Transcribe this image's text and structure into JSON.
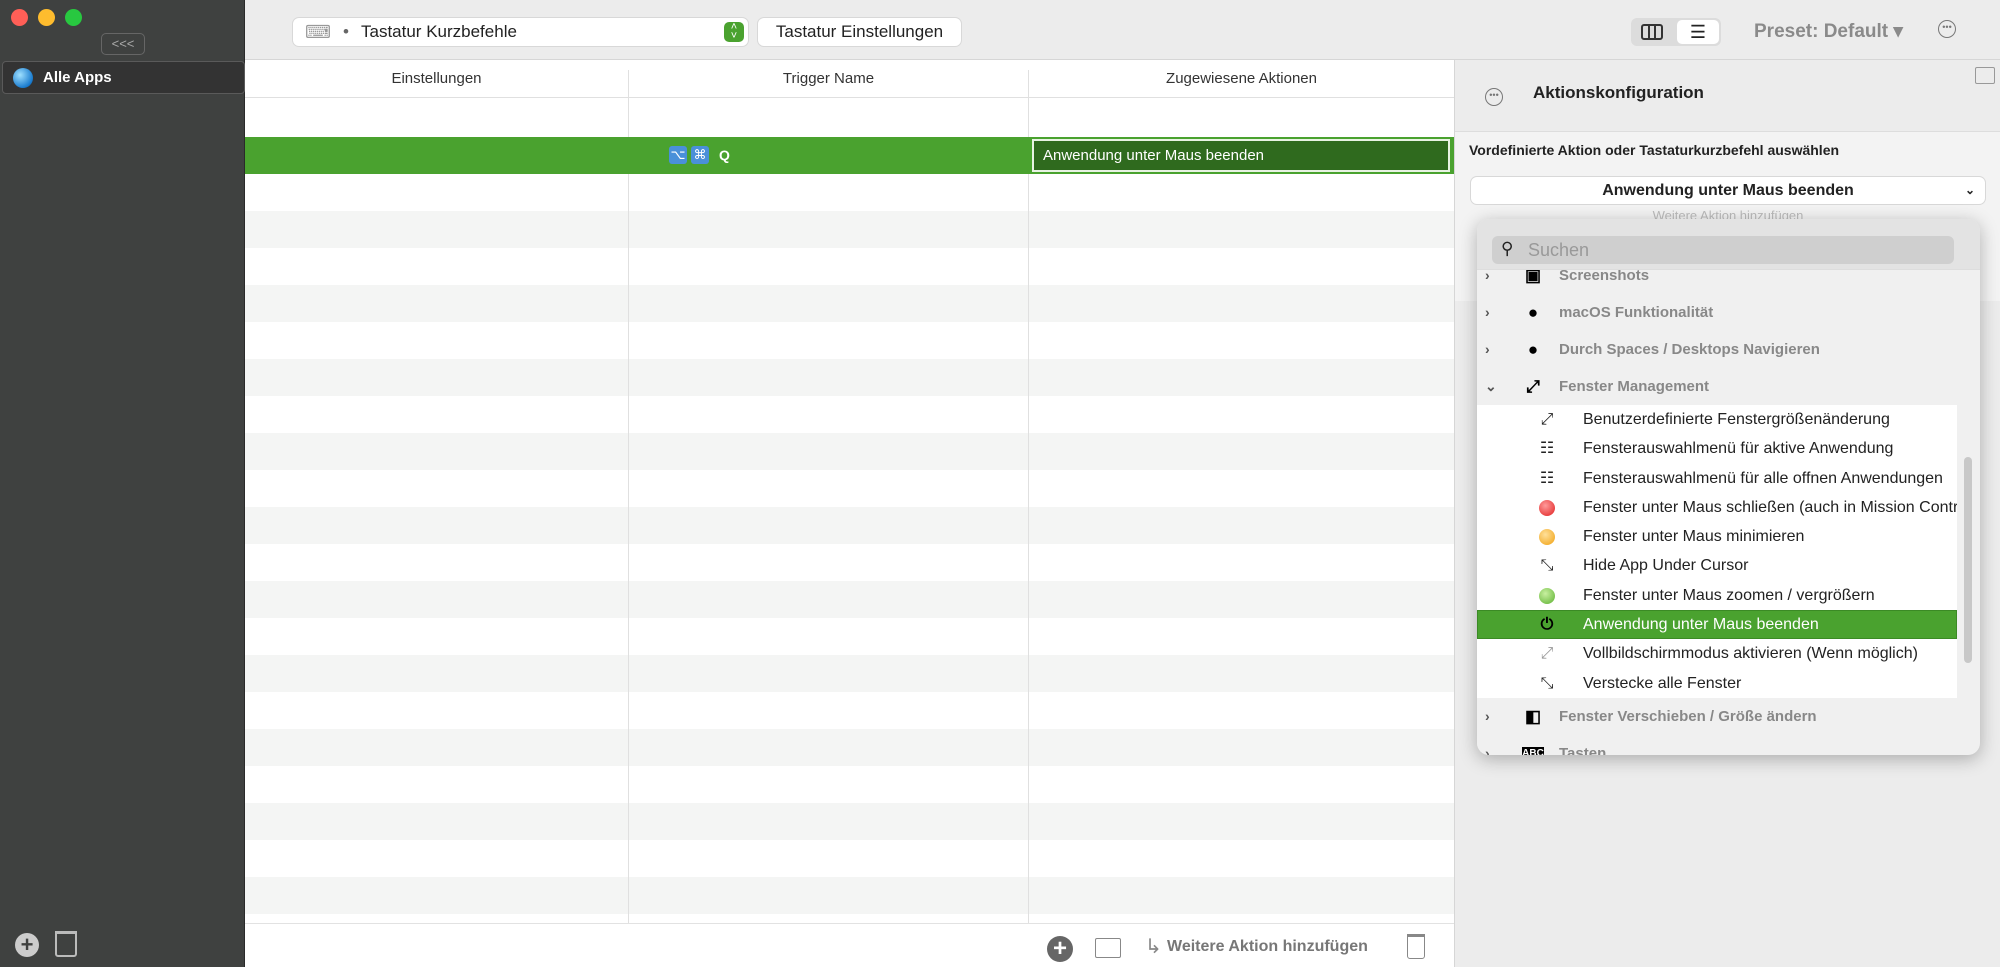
{
  "window": {
    "traffic_lights": [
      "#ff5f57",
      "#febc2e",
      "#28c840"
    ]
  },
  "sidebar": {
    "collapse_label": "<<<",
    "items": [
      {
        "label": "Alle Apps",
        "icon": "globe-icon"
      }
    ]
  },
  "toolbar": {
    "trigger_type": "Tastatur Kurzbefehle",
    "settings_button": "Tastatur Einstellungen",
    "preset": "Preset: Default ▾"
  },
  "table": {
    "columns": [
      "Einstellungen",
      "Trigger Name",
      "Zugewiesene Aktionen"
    ],
    "rows": [
      {
        "trigger_keys": [
          "⌥",
          "⌘"
        ],
        "trigger_key": "Q",
        "action": "Anwendung unter Maus beenden",
        "selected": true
      }
    ]
  },
  "bottom_bar": {
    "add_action_label": "Weitere Aktion hinzufügen"
  },
  "config": {
    "title": "Aktionskonfiguration",
    "select_label": "Vordefinierte Aktion oder Tastaturkurzbefehl auswählen",
    "selected_action": "Anwendung unter Maus beenden",
    "add_more_hint": "Weitere Aktion hinzufügen"
  },
  "popup": {
    "search_placeholder": "Suchen",
    "groups": {
      "screenshots": "Screenshots",
      "macos": "macOS Funktionalität",
      "spaces": "Durch Spaces / Desktops Navigieren",
      "window_mgmt": "Fenster Management",
      "move_resize": "Fenster Verschieben / Größe ändern",
      "keys": "Tasten"
    },
    "items": [
      "Benutzerdefinierte Fenstergrößenänderung",
      "Fensterauswahlmenü für aktive Anwendung",
      "Fensterauswahlmenü für alle offnen Anwendungen",
      "Fenster unter Maus schließen (auch in Mission Control)",
      "Fenster unter Maus minimieren",
      "Hide App Under Cursor",
      "Fenster unter Maus zoomen / vergrößern",
      "Anwendung unter Maus beenden",
      "Vollbildschirmmodus aktivieren (Wenn möglich)",
      "Verstecke alle Fenster"
    ],
    "selected_item": "Anwendung unter Maus beenden"
  },
  "colors": {
    "accent": "#4aa22f",
    "selected_cell": "#2f6a1e",
    "sidebar": "#3f4140"
  }
}
